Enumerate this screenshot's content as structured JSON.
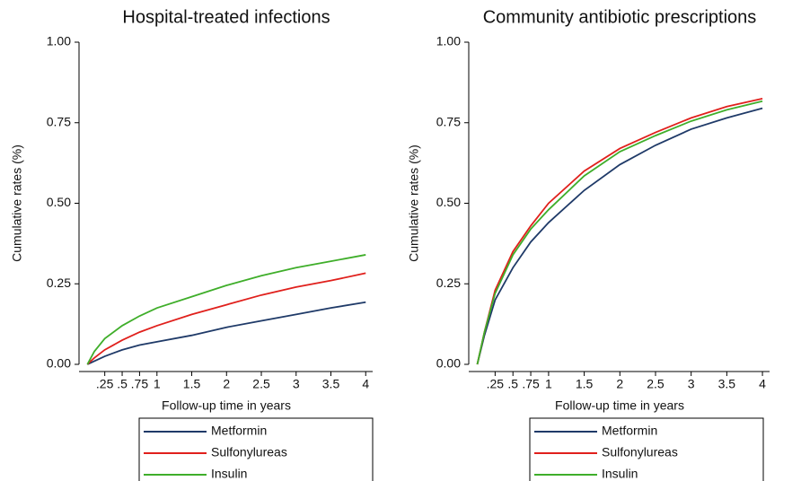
{
  "chart_data": [
    {
      "type": "line",
      "title": "Hospital-treated infections",
      "x_label": "Follow-up time in years",
      "y_label": "Cumulative rates (%)",
      "x": [
        0,
        0.1,
        0.25,
        0.5,
        0.75,
        1,
        1.5,
        2,
        2.5,
        3,
        3.5,
        4
      ],
      "series": [
        {
          "name": "Metformin",
          "color": "#1f3a68",
          "values": [
            0,
            0.01,
            0.025,
            0.045,
            0.06,
            0.07,
            0.09,
            0.115,
            0.135,
            0.155,
            0.175,
            0.193
          ]
        },
        {
          "name": "Sulfonylureas",
          "color": "#e0201c",
          "values": [
            0,
            0.02,
            0.045,
            0.075,
            0.1,
            0.12,
            0.155,
            0.185,
            0.215,
            0.24,
            0.26,
            0.283
          ]
        },
        {
          "name": "Insulin",
          "color": "#3fae2a",
          "values": [
            0,
            0.04,
            0.08,
            0.12,
            0.15,
            0.175,
            0.21,
            0.245,
            0.275,
            0.3,
            0.32,
            0.34
          ]
        }
      ],
      "xlim": [
        -0.12,
        4.1
      ],
      "ylim": [
        0,
        1
      ],
      "xticks": [
        {
          "value": 0.25,
          "label": ".25"
        },
        {
          "value": 0.5,
          "label": ".5"
        },
        {
          "value": 0.75,
          "label": ".75"
        },
        1,
        1.5,
        2,
        2.5,
        3,
        3.5,
        4
      ],
      "yticks": [
        {
          "value": 0,
          "label": "0.00"
        },
        {
          "value": 0.25,
          "label": "0.25"
        },
        {
          "value": 0.5,
          "label": "0.50"
        },
        {
          "value": 0.75,
          "label": "0.75"
        },
        {
          "value": 1,
          "label": "1.00"
        }
      ]
    },
    {
      "type": "line",
      "title": "Community antibiotic prescriptions",
      "x_label": "Follow-up time in years",
      "y_label": "Cumulative rates (%)",
      "x": [
        0,
        0.1,
        0.25,
        0.5,
        0.75,
        1,
        1.5,
        2,
        2.5,
        3,
        3.5,
        4
      ],
      "series": [
        {
          "name": "Metformin",
          "color": "#1f3a68",
          "values": [
            0,
            0.09,
            0.2,
            0.3,
            0.38,
            0.44,
            0.54,
            0.62,
            0.68,
            0.73,
            0.765,
            0.795
          ]
        },
        {
          "name": "Sulfonylureas",
          "color": "#e0201c",
          "values": [
            0,
            0.1,
            0.23,
            0.35,
            0.43,
            0.5,
            0.6,
            0.67,
            0.72,
            0.765,
            0.8,
            0.825
          ]
        },
        {
          "name": "Insulin",
          "color": "#3fae2a",
          "values": [
            0,
            0.1,
            0.22,
            0.34,
            0.42,
            0.48,
            0.585,
            0.66,
            0.71,
            0.755,
            0.79,
            0.817
          ]
        }
      ],
      "xlim": [
        -0.12,
        4.1
      ],
      "ylim": [
        0,
        1
      ],
      "xticks": [
        {
          "value": 0.25,
          "label": ".25"
        },
        {
          "value": 0.5,
          "label": ".5"
        },
        {
          "value": 0.75,
          "label": ".75"
        },
        1,
        1.5,
        2,
        2.5,
        3,
        3.5,
        4
      ],
      "yticks": [
        {
          "value": 0,
          "label": "0.00"
        },
        {
          "value": 0.25,
          "label": "0.25"
        },
        {
          "value": 0.5,
          "label": "0.50"
        },
        {
          "value": 0.75,
          "label": "0.75"
        },
        {
          "value": 1,
          "label": "1.00"
        }
      ]
    }
  ]
}
